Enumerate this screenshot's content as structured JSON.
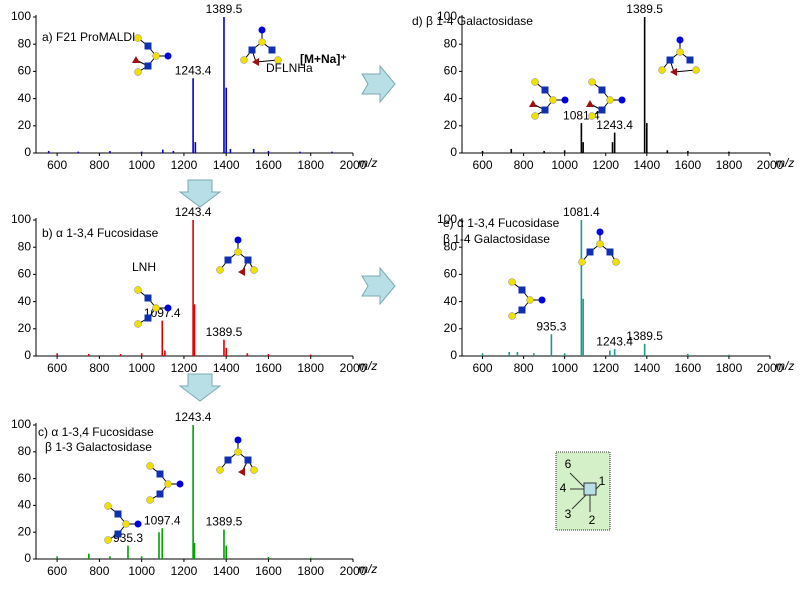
{
  "chart_data": [
    {
      "type": "bar",
      "title": [
        "a) F21 ProMALDI"
      ],
      "color": "#0000cc",
      "x": [
        560,
        700,
        850,
        1000,
        1100,
        1150,
        1243.4,
        1254,
        1389.5,
        1400,
        1420,
        1530,
        1600,
        1750,
        1900
      ],
      "values": [
        1.5,
        1,
        1.5,
        1,
        2.5,
        1.5,
        55,
        8,
        100,
        48,
        3,
        3,
        1.5,
        1,
        1
      ],
      "x_labels": [
        null,
        null,
        null,
        null,
        null,
        null,
        "1243.4",
        null,
        "1389.5",
        null,
        null,
        null,
        null,
        null,
        null
      ],
      "annotations": [
        "[M+Na]⁺",
        "DFLNHa"
      ],
      "xlim": [
        500,
        2000
      ],
      "xticks": [
        600,
        800,
        1000,
        1200,
        1400,
        1600,
        1800,
        2000
      ],
      "ylim": [
        0,
        100
      ],
      "yticks": [
        0,
        20,
        40,
        60,
        80,
        100
      ],
      "x_label": "m/z"
    },
    {
      "type": "bar",
      "title": [
        "b) α 1-3,4 Fucosidase"
      ],
      "color": "#e00000",
      "x": [
        600,
        750,
        900,
        1000,
        1097.4,
        1110,
        1243.4,
        1250,
        1389.5,
        1400,
        1500,
        1600,
        1800
      ],
      "values": [
        2,
        1.5,
        1.5,
        2,
        26,
        4,
        100,
        38,
        12,
        6,
        2,
        1.5,
        1
      ],
      "x_labels": [
        null,
        null,
        null,
        null,
        "1097.4",
        null,
        "1243.4",
        null,
        "1389.5",
        null,
        null,
        null,
        null
      ],
      "annotations": [
        "LNH"
      ],
      "xlim": [
        500,
        2000
      ],
      "xticks": [
        600,
        800,
        1000,
        1200,
        1400,
        1600,
        1800,
        2000
      ],
      "ylim": [
        0,
        100
      ],
      "yticks": [
        0,
        20,
        40,
        60,
        80,
        100
      ],
      "x_label": "m/z"
    },
    {
      "type": "bar",
      "title": [
        "c) α 1-3,4 Fucosidase",
        "β 1-3 Galactosidase"
      ],
      "color": "#00a000",
      "x": [
        600,
        750,
        850,
        935.3,
        1000,
        1082,
        1097.4,
        1243.4,
        1250,
        1389.5,
        1400,
        1600,
        1800
      ],
      "values": [
        2,
        4,
        2,
        10,
        2,
        20,
        23,
        100,
        12,
        22,
        10,
        1.5,
        1
      ],
      "x_labels": [
        null,
        null,
        null,
        "935.3",
        null,
        null,
        "1097.4",
        "1243.4",
        null,
        "1389.5",
        null,
        null,
        null
      ],
      "annotations": [],
      "xlim": [
        500,
        2000
      ],
      "xticks": [
        600,
        800,
        1000,
        1200,
        1400,
        1600,
        1800,
        2000
      ],
      "ylim": [
        0,
        100
      ],
      "yticks": [
        0,
        20,
        40,
        60,
        80,
        100
      ],
      "x_label": "m/z"
    },
    {
      "type": "bar",
      "title": [
        "d) β 1-4 Galactosidase"
      ],
      "color": "#000000",
      "x": [
        600,
        740,
        900,
        1000,
        1081.4,
        1090,
        1233,
        1243.4,
        1389.5,
        1400,
        1500,
        1600,
        1800
      ],
      "values": [
        1.5,
        3,
        1.5,
        2,
        22,
        8,
        8,
        15,
        100,
        22,
        2,
        1.5,
        1
      ],
      "x_labels": [
        null,
        null,
        null,
        null,
        "1081.4",
        null,
        null,
        "1243.4",
        "1389.5",
        null,
        null,
        null,
        null
      ],
      "annotations": [],
      "xlim": [
        500,
        2000
      ],
      "xticks": [
        600,
        800,
        1000,
        1200,
        1400,
        1600,
        1800,
        2000
      ],
      "ylim": [
        0,
        100
      ],
      "yticks": [
        0,
        20,
        40,
        60,
        80,
        100
      ],
      "x_label": "m/z"
    },
    {
      "type": "bar",
      "title": [
        "e) α 1-3,4 Fucosidase",
        "β 1-4 Galactosidase"
      ],
      "color": "#1a9a8a",
      "x": [
        600,
        730,
        770,
        850,
        935.3,
        1000,
        1081.4,
        1090,
        1220,
        1243.4,
        1389.5,
        1600,
        1800
      ],
      "values": [
        2,
        3,
        3,
        2,
        16,
        2,
        100,
        42,
        4,
        5,
        9,
        1.5,
        1
      ],
      "x_labels": [
        null,
        null,
        null,
        null,
        "935.3",
        null,
        "1081.4",
        null,
        null,
        "1243.4",
        "1389.5",
        null,
        null
      ],
      "annotations": [],
      "xlim": [
        500,
        2000
      ],
      "xticks": [
        600,
        800,
        1000,
        1200,
        1400,
        1600,
        1800,
        2000
      ],
      "ylim": [
        0,
        100
      ],
      "yticks": [
        0,
        20,
        40,
        60,
        80,
        100
      ],
      "x_label": "m/z"
    }
  ],
  "linkage_key": {
    "labels": [
      "6",
      "4",
      "1",
      "3",
      "2"
    ]
  }
}
